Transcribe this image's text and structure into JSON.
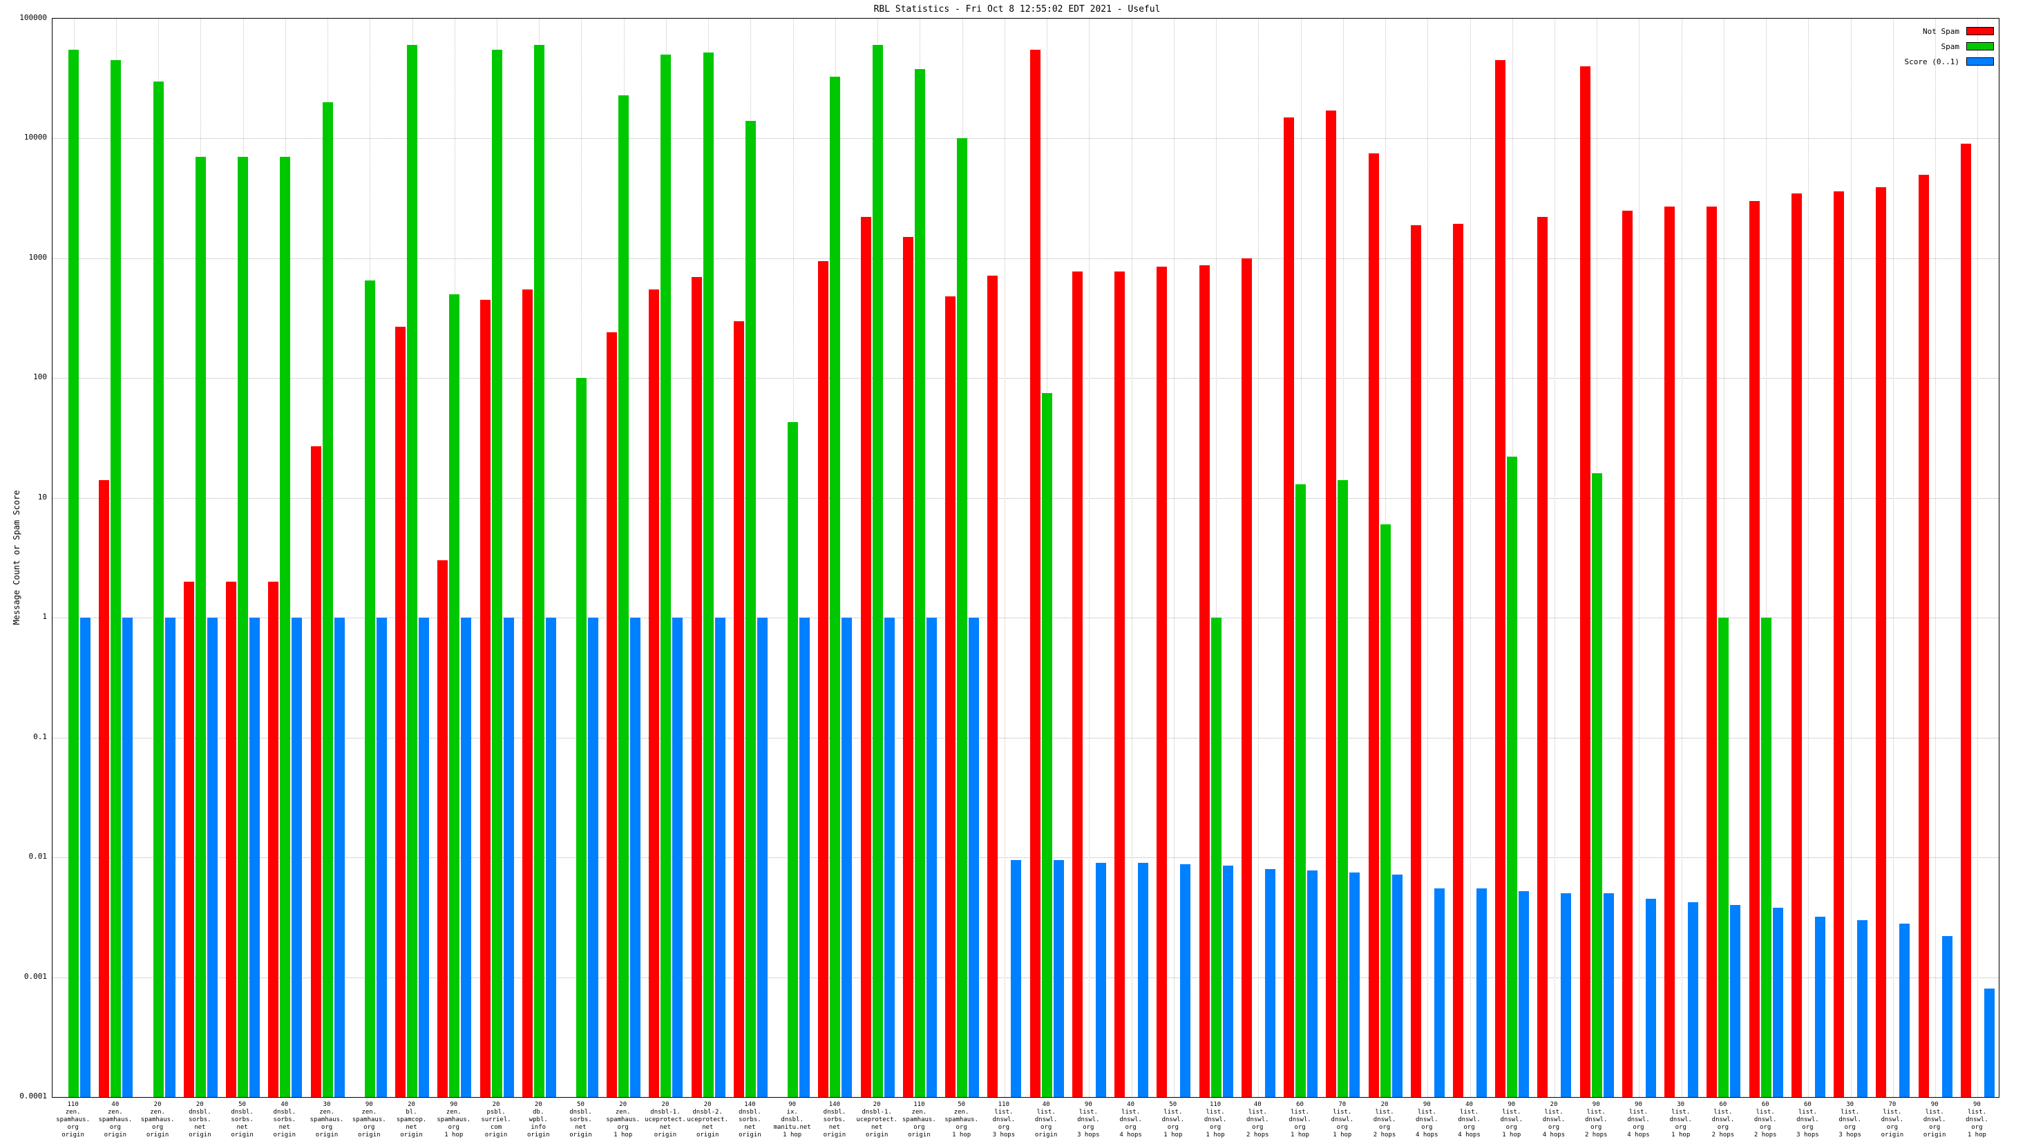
{
  "title": "RBL Statistics - Fri Oct  8 12:55:02 EDT 2021 - Useful",
  "ylabel": "Message Count or Spam Score",
  "legend": {
    "items": [
      {
        "label": "Not Spam",
        "color": "#ff0000"
      },
      {
        "label": "Spam",
        "color": "#00c800"
      },
      {
        "label": "Score (0..1)",
        "color": "#0080ff"
      }
    ]
  },
  "chart_data": {
    "type": "bar",
    "scale": "log",
    "grid": true,
    "legend_position": "top-right",
    "ylim": [
      0.0001,
      100000
    ],
    "yticks": [
      100000,
      10000,
      1000,
      100,
      10,
      1,
      0.1,
      0.01,
      0.001,
      0.0001
    ],
    "ytick_labels": [
      "100000",
      "10000",
      "1000",
      "100",
      "10",
      "1",
      "0.1",
      "0.01",
      "0.001",
      "0.0001"
    ],
    "categories": [
      "110\nzen.\nspamhaus.\norg\norigin",
      "40\nzen.\nspamhaus.\norg\norigin",
      "20\nzen.\nspamhaus.\norg\norigin",
      "20\ndnsbl.\nsorbs.\nnet\norigin",
      "50\ndnsbl.\nsorbs.\nnet\norigin",
      "40\ndnsbl.\nsorbs.\nnet\norigin",
      "30\nzen.\nspamhaus.\norg\norigin",
      "90\nzen.\nspamhaus.\norg\norigin",
      "20\nbl.\nspamcop.\nnet\norigin",
      "90\nzen.\nspamhaus.\norg\n1 hop",
      "20\npsbl.\nsurriel.\ncom\norigin",
      "20\ndb.\nwpbl.\ninfo\norigin",
      "50\ndnsbl.\nsorbs.\nnet\norigin",
      "20\nzen.\nspamhaus.\norg\n1 hop",
      "20\ndnsbl-1.\nuceprotect.\nnet\norigin",
      "20\ndnsbl-2.\nuceprotect.\nnet\norigin",
      "140\ndnsbl.\nsorbs.\nnet\norigin",
      "90\nix.\ndnsbl.\nmanitu.net\n1 hop",
      "140\ndnsbl.\nsorbs.\nnet\norigin",
      "20\ndnsbl-1.\nuceprotect.\nnet\norigin",
      "110\nzen.\nspamhaus.\norg\norigin",
      "50\nzen.\nspamhaus.\norg\n1 hop",
      "110\nlist.\ndnswl.\norg\n3 hops",
      "40\nlist.\ndnswl.\norg\norigin",
      "90\nlist.\ndnswl.\norg\n3 hops",
      "40\nlist.\ndnswl.\norg\n4 hops",
      "50\nlist.\ndnswl.\norg\n1 hop",
      "110\nlist.\ndnswl.\norg\n1 hop",
      "40\nlist.\ndnswl.\norg\n2 hops",
      "60\nlist.\ndnswl.\norg\n1 hop",
      "70\nlist.\ndnswl.\norg\n1 hop",
      "20\nlist.\ndnswl.\norg\n2 hops",
      "90\nlist.\ndnswl.\norg\n4 hops",
      "40\nlist.\ndnswl.\norg\n4 hops",
      "90\nlist.\ndnswl.\norg\n1 hop",
      "20\nlist.\ndnswl.\norg\n4 hops",
      "90\nlist.\ndnswl.\norg\n2 hops",
      "90\nlist.\ndnswl.\norg\n4 hops",
      "30\nlist.\ndnswl.\norg\n1 hop",
      "60\nlist.\ndnswl.\norg\n2 hops",
      "60\nlist.\ndnswl.\norg\n2 hops",
      "60\nlist.\ndnswl.\norg\n3 hops",
      "30\nlist.\ndnswl.\norg\n3 hops",
      "70\nlist.\ndnswl.\norg\norigin",
      "90\nlist.\ndnswl.\norg\norigin",
      "90\nlist.\ndnswl.\norg\n1 hop"
    ],
    "series": [
      {
        "name": "Not Spam",
        "color": "#ff0000",
        "values": [
          null,
          14,
          null,
          2,
          2,
          2,
          27,
          null,
          270,
          3,
          450,
          550,
          null,
          240,
          550,
          700,
          300,
          null,
          950,
          2200,
          1500,
          480,
          720,
          55000,
          780,
          780,
          850,
          870,
          1000,
          15000,
          17000,
          7500,
          1900,
          1950,
          45000,
          2200,
          40000,
          2500,
          2700,
          2700,
          3000,
          3500,
          3600,
          3900,
          5000,
          9000
        ]
      },
      {
        "name": "Spam",
        "color": "#00c800",
        "values": [
          55000,
          45000,
          30000,
          7000,
          7000,
          7000,
          20000,
          650,
          60000,
          500,
          55000,
          60000,
          100,
          23000,
          50000,
          52000,
          14000,
          43,
          33000,
          60000,
          38000,
          10000,
          null,
          75,
          null,
          null,
          null,
          1,
          null,
          13,
          14,
          6,
          null,
          null,
          22,
          null,
          16,
          null,
          null,
          1,
          1,
          null,
          null,
          null,
          null,
          null
        ]
      },
      {
        "name": "Score (0..1)",
        "color": "#0080ff",
        "values": [
          1,
          1,
          1,
          1,
          1,
          1,
          1,
          1,
          1,
          1,
          1,
          1,
          1,
          1,
          1,
          1,
          1,
          1,
          1,
          1,
          1,
          1,
          0.0095,
          0.0095,
          0.009,
          0.009,
          0.0088,
          0.0085,
          0.008,
          0.0078,
          0.0075,
          0.0072,
          0.0055,
          0.0055,
          0.0052,
          0.005,
          0.005,
          0.0045,
          0.0042,
          0.004,
          0.0038,
          0.0032,
          0.003,
          0.0028,
          0.0022,
          0.0008
        ]
      }
    ]
  }
}
